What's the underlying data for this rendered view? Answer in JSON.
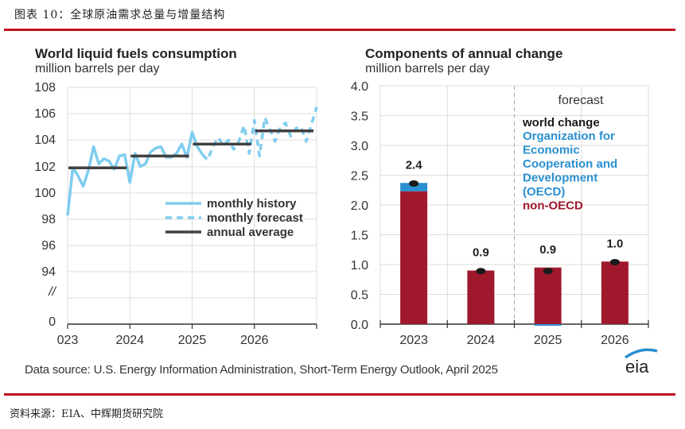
{
  "figure": {
    "title": "图表 10：全球原油需求总量与增量结构",
    "data_source": "Data source: U.S. Energy Information Administration, Short-Term Energy Outlook, April 2025",
    "source_cn": "资料来源：EIA、中辉期货研究院",
    "logo_text": "eia",
    "colors": {
      "rule": "#c0121b",
      "history": "#7fcdf0",
      "annual": "#404040",
      "oecd": "#2a8fd0",
      "non_oecd": "#a0182c",
      "world": "#1a1a1a"
    }
  },
  "chart_data": [
    {
      "type": "line",
      "title": "World liquid fuels consumption",
      "subtitle": "million barrels per day",
      "xlabel": "",
      "ylabel": "million barrels per day",
      "ylim": [
        94,
        108
      ],
      "y_ticks": [
        "108",
        "106",
        "104",
        "102",
        "100",
        "98",
        "96",
        "94",
        "//",
        "0"
      ],
      "x_ticks": [
        "023",
        "2024",
        "2025",
        "2026"
      ],
      "grid": true,
      "legend_position": "middle-right",
      "legend": [
        "monthly history",
        "monthly forecast",
        "annual average"
      ],
      "x_start": 2023.0,
      "series": [
        {
          "name": "monthly history",
          "style": "solid",
          "x": [
            2023.0,
            2023.083,
            2023.167,
            2023.25,
            2023.333,
            2023.417,
            2023.5,
            2023.583,
            2023.667,
            2023.75,
            2023.833,
            2023.917,
            2024.0,
            2024.083,
            2024.167,
            2024.25,
            2024.333,
            2024.417,
            2024.5,
            2024.583,
            2024.667,
            2024.75,
            2024.833,
            2024.917,
            2025.0,
            2025.083,
            2025.167
          ],
          "values": [
            98.3,
            101.9,
            101.3,
            100.5,
            101.7,
            103.5,
            102.2,
            102.6,
            102.4,
            101.8,
            102.8,
            102.9,
            100.8,
            103.0,
            102.0,
            102.2,
            103.1,
            103.4,
            103.5,
            102.7,
            102.7,
            103.0,
            103.7,
            102.7,
            104.6,
            103.5,
            102.9
          ]
        },
        {
          "name": "monthly forecast",
          "style": "dashed",
          "x": [
            2025.167,
            2025.25,
            2025.333,
            2025.417,
            2025.5,
            2025.583,
            2025.667,
            2025.75,
            2025.833,
            2025.917,
            2026.0,
            2026.083,
            2026.167,
            2026.25,
            2026.333,
            2026.417,
            2026.5,
            2026.583,
            2026.667,
            2026.75,
            2026.833,
            2026.917,
            2027.0
          ],
          "values": [
            102.9,
            102.5,
            103.5,
            104.2,
            103.6,
            104.0,
            103.3,
            103.9,
            105.1,
            103.0,
            105.5,
            102.8,
            105.7,
            104.8,
            103.9,
            105.0,
            105.3,
            104.3,
            104.9,
            105.0,
            103.9,
            105.2,
            106.5
          ]
        },
        {
          "name": "annual average",
          "style": "segments",
          "years": [
            2023,
            2024,
            2025,
            2026
          ],
          "values": [
            101.9,
            102.8,
            103.7,
            104.7
          ]
        }
      ]
    },
    {
      "type": "bar",
      "stacked": true,
      "title": "Components of annual change",
      "subtitle": "million barrels per day",
      "xlabel": "",
      "ylabel": "million barrels per day",
      "ylim": [
        0,
        4.0
      ],
      "y_ticks": [
        "4.0",
        "3.5",
        "3.0",
        "2.5",
        "2.0",
        "1.5",
        "1.0",
        "0.5",
        "0.0"
      ],
      "categories": [
        "2023",
        "2024",
        "2025",
        "2026"
      ],
      "grid": true,
      "annotation": "forecast",
      "forecast_starts_after": "2024",
      "legend_position": "top-right",
      "legend": [
        {
          "name": "world change",
          "color_key": "world"
        },
        {
          "name": "Organization for Economic Cooperation and Development (OECD)",
          "lines": [
            "Organization for",
            "Economic",
            "Cooperation and",
            "Development",
            "(OECD)"
          ],
          "color_key": "oecd"
        },
        {
          "name": "non-OECD",
          "color_key": "non_oecd"
        }
      ],
      "series": [
        {
          "name": "non-OECD",
          "values": [
            2.23,
            0.9,
            0.95,
            1.05
          ]
        },
        {
          "name": "OECD",
          "values": [
            0.14,
            0.0,
            -0.02,
            0.0
          ]
        },
        {
          "name": "world change",
          "values": [
            2.36,
            0.89,
            0.89,
            1.04
          ]
        }
      ],
      "data_labels": [
        "2.4",
        "0.9",
        "0.9",
        "1.0"
      ]
    }
  ]
}
